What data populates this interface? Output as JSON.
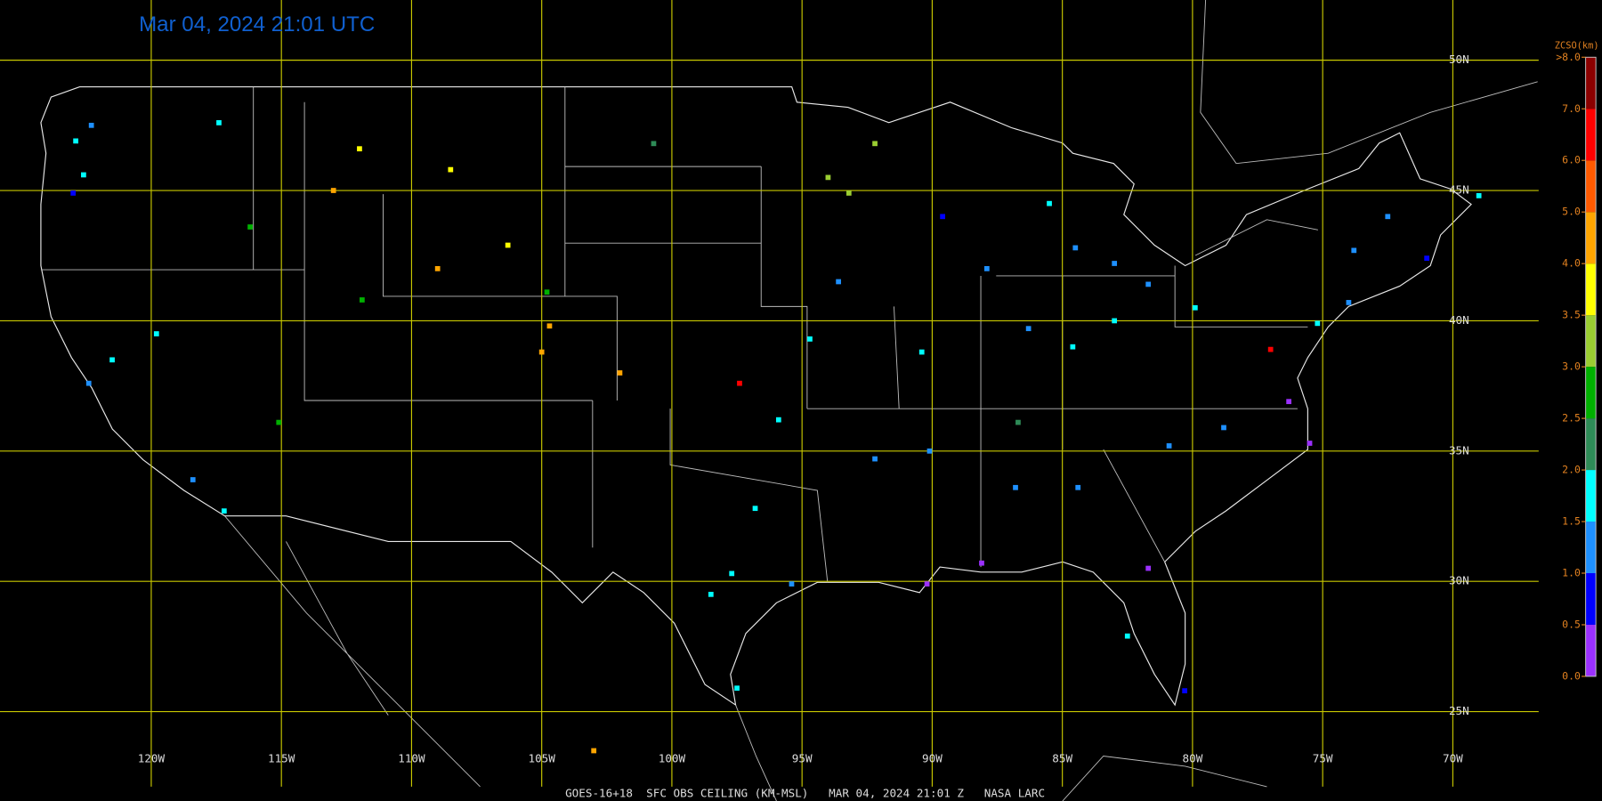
{
  "header": {
    "title": "Mar 04, 2024 21:01 UTC"
  },
  "map": {
    "xlim": [
      -125.81,
      -64.27
    ],
    "ylim": [
      21.57,
      52.31
    ],
    "grid": true,
    "grid_color": "#c8c800",
    "lon_ticks": [
      {
        "value": -120,
        "label": "120W"
      },
      {
        "value": -115,
        "label": "115W"
      },
      {
        "value": -110,
        "label": "110W"
      },
      {
        "value": -105,
        "label": "105W"
      },
      {
        "value": -100,
        "label": "100W"
      },
      {
        "value": -95,
        "label": "95W"
      },
      {
        "value": -90,
        "label": "90W"
      },
      {
        "value": -85,
        "label": "85W"
      },
      {
        "value": -80,
        "label": "80W"
      },
      {
        "value": -75,
        "label": "75W"
      },
      {
        "value": -70,
        "label": "70W"
      }
    ],
    "lat_ticks": [
      {
        "value": 50,
        "label": "50N"
      },
      {
        "value": 45,
        "label": "45N"
      },
      {
        "value": 40,
        "label": "40N"
      },
      {
        "value": 35,
        "label": "35N"
      },
      {
        "value": 30,
        "label": "30N"
      },
      {
        "value": 25,
        "label": "25N"
      }
    ],
    "stations": [
      {
        "lon": -122.3,
        "lat": 47.5,
        "ceiling": 1.2
      },
      {
        "lon": -122.9,
        "lat": 46.9,
        "ceiling": 1.5
      },
      {
        "lon": -123.0,
        "lat": 44.9,
        "ceiling": 0.8
      },
      {
        "lon": -122.6,
        "lat": 45.6,
        "ceiling": 1.7
      },
      {
        "lon": -117.4,
        "lat": 47.6,
        "ceiling": 1.5
      },
      {
        "lon": -116.2,
        "lat": 43.6,
        "ceiling": 2.6
      },
      {
        "lon": -111.9,
        "lat": 40.8,
        "ceiling": 2.7
      },
      {
        "lon": -112.0,
        "lat": 46.6,
        "ceiling": 3.8
      },
      {
        "lon": -108.5,
        "lat": 45.8,
        "ceiling": 3.6
      },
      {
        "lon": -106.3,
        "lat": 42.9,
        "ceiling": 3.6
      },
      {
        "lon": -104.8,
        "lat": 41.1,
        "ceiling": 2.7
      },
      {
        "lon": -104.7,
        "lat": 39.8,
        "ceiling": 4.2
      },
      {
        "lon": -105.0,
        "lat": 38.8,
        "ceiling": 4.6
      },
      {
        "lon": -102.0,
        "lat": 38.0,
        "ceiling": 4.2
      },
      {
        "lon": -119.8,
        "lat": 39.5,
        "ceiling": 1.8
      },
      {
        "lon": -115.1,
        "lat": 36.1,
        "ceiling": 2.6
      },
      {
        "lon": -118.4,
        "lat": 33.9,
        "ceiling": 1.2
      },
      {
        "lon": -117.2,
        "lat": 32.7,
        "ceiling": 1.6
      },
      {
        "lon": -122.4,
        "lat": 37.6,
        "ceiling": 1.3
      },
      {
        "lon": -121.5,
        "lat": 38.5,
        "ceiling": 1.8
      },
      {
        "lon": -96.8,
        "lat": 32.8,
        "ceiling": 1.8
      },
      {
        "lon": -95.4,
        "lat": 29.9,
        "ceiling": 1.2
      },
      {
        "lon": -97.7,
        "lat": 30.3,
        "ceiling": 1.7
      },
      {
        "lon": -98.5,
        "lat": 29.5,
        "ceiling": 1.5
      },
      {
        "lon": -97.5,
        "lat": 25.9,
        "ceiling": 1.7
      },
      {
        "lon": -90.2,
        "lat": 29.9,
        "ceiling": 0.4
      },
      {
        "lon": -88.1,
        "lat": 30.7,
        "ceiling": 0.3
      },
      {
        "lon": -86.8,
        "lat": 33.6,
        "ceiling": 1.2
      },
      {
        "lon": -84.4,
        "lat": 33.6,
        "ceiling": 1.0
      },
      {
        "lon": -81.7,
        "lat": 30.5,
        "ceiling": 0.4
      },
      {
        "lon": -82.5,
        "lat": 27.9,
        "ceiling": 1.8
      },
      {
        "lon": -80.3,
        "lat": 25.8,
        "ceiling": 0.9
      },
      {
        "lon": -80.9,
        "lat": 35.2,
        "ceiling": 1.2
      },
      {
        "lon": -78.8,
        "lat": 35.9,
        "ceiling": 1.4
      },
      {
        "lon": -77.0,
        "lat": 38.9,
        "ceiling": 6.5
      },
      {
        "lon": -76.3,
        "lat": 36.9,
        "ceiling": 0.4
      },
      {
        "lon": -75.2,
        "lat": 39.9,
        "ceiling": 1.6
      },
      {
        "lon": -74.0,
        "lat": 40.7,
        "ceiling": 1.0
      },
      {
        "lon": -71.0,
        "lat": 42.4,
        "ceiling": 0.8
      },
      {
        "lon": -73.8,
        "lat": 42.7,
        "ceiling": 1.4
      },
      {
        "lon": -79.9,
        "lat": 40.5,
        "ceiling": 1.6
      },
      {
        "lon": -81.7,
        "lat": 41.4,
        "ceiling": 1.4
      },
      {
        "lon": -83.0,
        "lat": 40.0,
        "ceiling": 1.7
      },
      {
        "lon": -86.3,
        "lat": 39.7,
        "ceiling": 1.2
      },
      {
        "lon": -87.9,
        "lat": 42.0,
        "ceiling": 1.3
      },
      {
        "lon": -90.4,
        "lat": 38.8,
        "ceiling": 1.7
      },
      {
        "lon": -93.6,
        "lat": 41.5,
        "ceiling": 1.1
      },
      {
        "lon": -93.2,
        "lat": 44.9,
        "ceiling": 3.2
      },
      {
        "lon": -92.2,
        "lat": 46.8,
        "ceiling": 3.0
      },
      {
        "lon": -89.6,
        "lat": 44.0,
        "ceiling": 0.9
      },
      {
        "lon": -85.5,
        "lat": 44.5,
        "ceiling": 1.7
      },
      {
        "lon": -84.5,
        "lat": 42.8,
        "ceiling": 1.3
      },
      {
        "lon": -83.0,
        "lat": 42.2,
        "ceiling": 1.0
      },
      {
        "lon": -94.7,
        "lat": 39.3,
        "ceiling": 1.7
      },
      {
        "lon": -97.4,
        "lat": 37.6,
        "ceiling": 6.8
      },
      {
        "lon": -95.9,
        "lat": 36.2,
        "ceiling": 1.5
      },
      {
        "lon": -92.2,
        "lat": 34.7,
        "ceiling": 1.0
      },
      {
        "lon": -90.1,
        "lat": 35.0,
        "ceiling": 1.1
      },
      {
        "lon": -86.7,
        "lat": 36.1,
        "ceiling": 2.4
      },
      {
        "lon": -84.6,
        "lat": 39.0,
        "ceiling": 1.7
      },
      {
        "lon": -69.0,
        "lat": 44.8,
        "ceiling": 1.6
      },
      {
        "lon": -72.5,
        "lat": 44.0,
        "ceiling": 1.3
      },
      {
        "lon": -100.7,
        "lat": 46.8,
        "ceiling": 2.0
      },
      {
        "lon": -94.0,
        "lat": 45.5,
        "ceiling": 3.3
      },
      {
        "lon": -109.0,
        "lat": 42.0,
        "ceiling": 4.1
      },
      {
        "lon": -113.0,
        "lat": 45.0,
        "ceiling": 4.5
      },
      {
        "lon": -103.0,
        "lat": 23.5,
        "ceiling": 4.4
      },
      {
        "lon": -75.5,
        "lat": 35.3,
        "ceiling": 0.3
      }
    ]
  },
  "colorbar": {
    "title": "ZCSO(km)",
    "ticks": [
      {
        "value": 0,
        "label": "0.0"
      },
      {
        "value": 0.5,
        "label": "0.5"
      },
      {
        "value": 1,
        "label": "1.0"
      },
      {
        "value": 1.5,
        "label": "1.5"
      },
      {
        "value": 2,
        "label": "2.0"
      },
      {
        "value": 2.5,
        "label": "2.5"
      },
      {
        "value": 3,
        "label": "3.0"
      },
      {
        "value": 3.5,
        "label": "3.5"
      },
      {
        "value": 4,
        "label": "4.0"
      },
      {
        "value": 5,
        "label": "5.0"
      },
      {
        "value": 6,
        "label": "6.0"
      },
      {
        "value": 7,
        "label": "7.0"
      },
      {
        "value": 8,
        "label": ">8.0"
      }
    ],
    "colors": [
      "#9b30ff",
      "#0000ff",
      "#1e90ff",
      "#00ffff",
      "#2e8b57",
      "#00b000",
      "#9acd32",
      "#ffff00",
      "#ffa500",
      "#ff5a00",
      "#ff0000",
      "#8b0000"
    ]
  },
  "footer": "GOES-16+18  SFC OBS CEILING (KM-MSL)   MAR 04, 2024 21:01 Z   NASA LARC"
}
